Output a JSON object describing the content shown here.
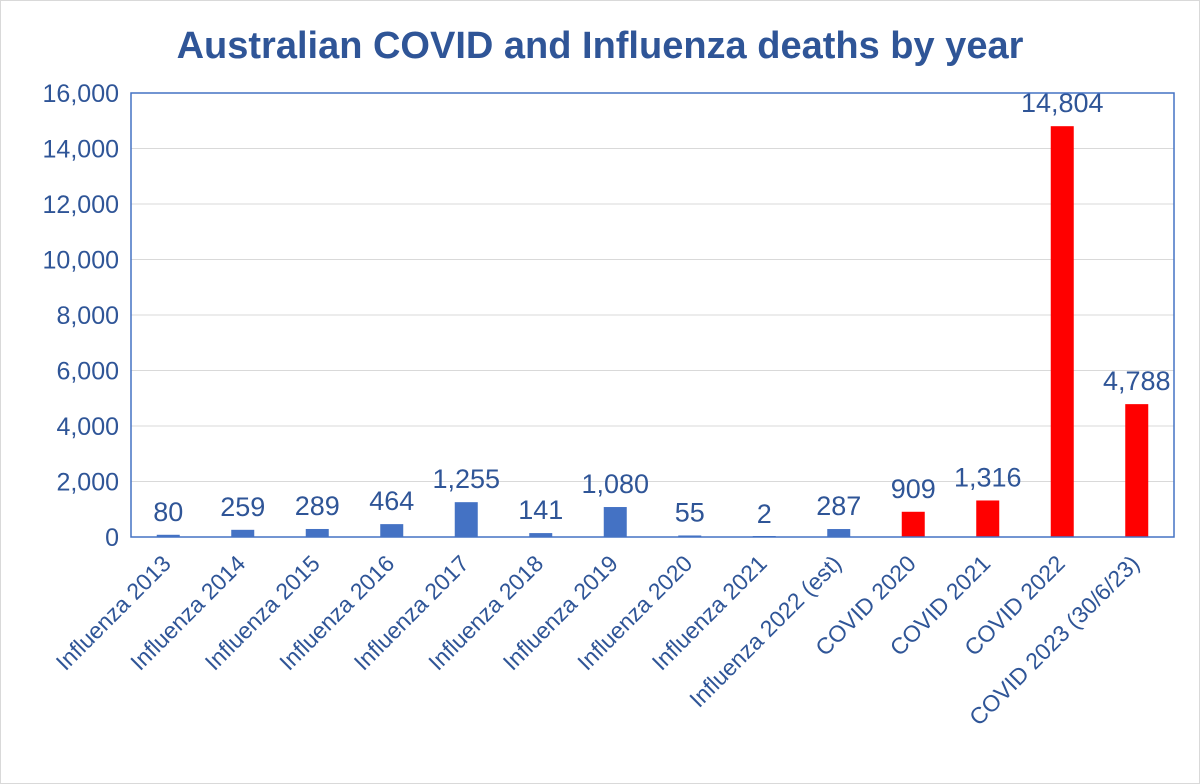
{
  "colors": {
    "text": "#2f5597",
    "influenza_bar": "#4472c4",
    "covid_bar": "#ff0000",
    "gridline": "#d9d9d9",
    "plot_border": "#4472c4",
    "frame": "#d9d9d9"
  },
  "chart_data": {
    "type": "bar",
    "title": "Australian COVID and Influenza deaths by year",
    "xlabel": "",
    "ylabel": "",
    "ylim": [
      0,
      16000
    ],
    "yticks": [
      0,
      2000,
      4000,
      6000,
      8000,
      10000,
      12000,
      14000,
      16000
    ],
    "ytick_labels": [
      "0",
      "2,000",
      "4,000",
      "6,000",
      "8,000",
      "10,000",
      "12,000",
      "14,000",
      "16,000"
    ],
    "grid": true,
    "legend": "none",
    "categories": [
      "Influenza 2013",
      "Influenza 2014",
      "Influenza 2015",
      "Influenza 2016",
      "Influenza 2017",
      "Influenza 2018",
      "Influenza 2019",
      "Influenza 2020",
      "Influenza 2021",
      "Influenza 2022 (est)",
      "COVID 2020",
      "COVID 2021",
      "COVID 2022",
      "COVID 2023 (30/6/23)"
    ],
    "values": [
      80,
      259,
      289,
      464,
      1255,
      141,
      1080,
      55,
      2,
      287,
      909,
      1316,
      14804,
      4788
    ],
    "value_labels": [
      "80",
      "259",
      "289",
      "464",
      "1,255",
      "141",
      "1,080",
      "55",
      "2",
      "287",
      "909",
      "1,316",
      "14,804",
      "4,788"
    ],
    "bar_groups": [
      "influenza",
      "influenza",
      "influenza",
      "influenza",
      "influenza",
      "influenza",
      "influenza",
      "influenza",
      "influenza",
      "influenza",
      "covid",
      "covid",
      "covid",
      "covid"
    ]
  }
}
